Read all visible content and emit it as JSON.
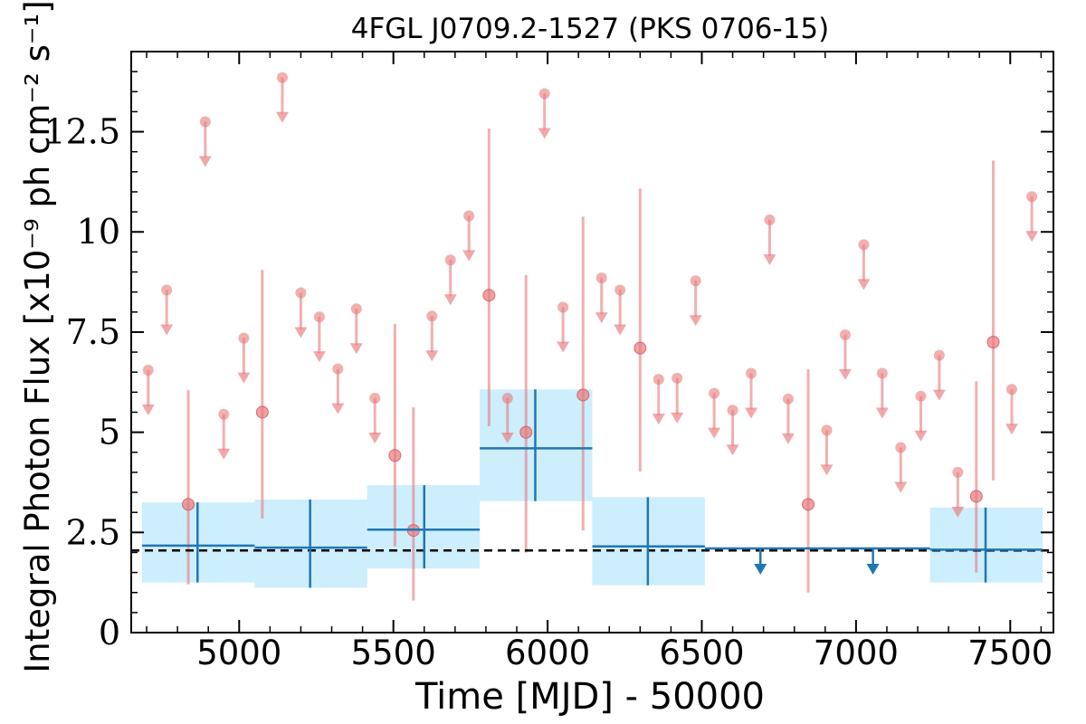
{
  "chart_data": {
    "type": "scatter",
    "title": "4FGL J0709.2-1527 (PKS 0706-15)",
    "xlabel": "Time [MJD] - 50000",
    "ylabel": "Integral Photon Flux [x10⁻⁹ ph cm⁻² s⁻¹]",
    "xlim": [
      4650,
      7640
    ],
    "ylim": [
      0,
      14.5
    ],
    "xticks": [
      5000,
      5500,
      6000,
      6500,
      7000,
      7500
    ],
    "xtick_labels": [
      "5000",
      "5500",
      "6000",
      "6500",
      "7000",
      "7500"
    ],
    "yticks": [
      0,
      2.5,
      5,
      7.5,
      10,
      12.5
    ],
    "ytick_labels": [
      "0",
      "2.5",
      "5",
      "7.5",
      "10",
      "12.5"
    ],
    "grid": false,
    "reference_line": {
      "y": 2.05,
      "style": "dashed"
    },
    "colors": {
      "short_bins": "#e8797c",
      "long_bins": "#1f77b4",
      "long_bin_band": "#cdeefc",
      "reference": "#000000"
    },
    "series": [
      {
        "detections": [
          {
            "x": 4835,
            "y": 3.2,
            "ylo": 1.2,
            "yhi": 6.05
          },
          {
            "x": 5075,
            "y": 5.5,
            "ylo": 2.85,
            "yhi": 9.05
          },
          {
            "x": 5505,
            "y": 4.42,
            "ylo": 2.15,
            "yhi": 7.7
          },
          {
            "x": 5565,
            "y": 2.55,
            "ylo": 0.8,
            "yhi": 5.62
          },
          {
            "x": 5810,
            "y": 8.42,
            "ylo": 5.15,
            "yhi": 12.58
          },
          {
            "x": 5930,
            "y": 5.0,
            "ylo": 2.0,
            "yhi": 8.92
          },
          {
            "x": 6115,
            "y": 5.93,
            "ylo": 2.55,
            "yhi": 10.38
          },
          {
            "x": 6300,
            "y": 7.1,
            "ylo": 4.02,
            "yhi": 11.08
          },
          {
            "x": 6845,
            "y": 3.2,
            "ylo": 1.0,
            "yhi": 6.57
          },
          {
            "x": 7390,
            "y": 3.4,
            "ylo": 1.5,
            "yhi": 6.27
          },
          {
            "x": 7445,
            "y": 7.25,
            "ylo": 3.8,
            "yhi": 11.78
          }
        ],
        "upper_limits": [
          {
            "x": 4705,
            "y": 6.55
          },
          {
            "x": 4765,
            "y": 8.55
          },
          {
            "x": 4890,
            "y": 12.75
          },
          {
            "x": 4950,
            "y": 5.45
          },
          {
            "x": 5015,
            "y": 7.35
          },
          {
            "x": 5140,
            "y": 13.85
          },
          {
            "x": 5200,
            "y": 8.48
          },
          {
            "x": 5260,
            "y": 7.88
          },
          {
            "x": 5320,
            "y": 6.58
          },
          {
            "x": 5380,
            "y": 8.08
          },
          {
            "x": 5440,
            "y": 5.85
          },
          {
            "x": 5625,
            "y": 7.9
          },
          {
            "x": 5685,
            "y": 9.3
          },
          {
            "x": 5745,
            "y": 10.4
          },
          {
            "x": 5870,
            "y": 5.85
          },
          {
            "x": 5990,
            "y": 13.45
          },
          {
            "x": 6050,
            "y": 8.12
          },
          {
            "x": 6175,
            "y": 8.85
          },
          {
            "x": 6235,
            "y": 8.55
          },
          {
            "x": 6360,
            "y": 6.32
          },
          {
            "x": 6420,
            "y": 6.35
          },
          {
            "x": 6480,
            "y": 8.78
          },
          {
            "x": 6540,
            "y": 5.97
          },
          {
            "x": 6600,
            "y": 5.55
          },
          {
            "x": 6660,
            "y": 6.47
          },
          {
            "x": 6720,
            "y": 10.3
          },
          {
            "x": 6780,
            "y": 5.83
          },
          {
            "x": 6905,
            "y": 5.05
          },
          {
            "x": 6965,
            "y": 7.43
          },
          {
            "x": 7025,
            "y": 9.68
          },
          {
            "x": 7085,
            "y": 6.47
          },
          {
            "x": 7145,
            "y": 4.62
          },
          {
            "x": 7210,
            "y": 5.9
          },
          {
            "x": 7270,
            "y": 6.92
          },
          {
            "x": 7330,
            "y": 4.0
          },
          {
            "x": 7505,
            "y": 6.07
          },
          {
            "x": 7570,
            "y": 10.88
          }
        ]
      },
      {
        "detections": [
          {
            "x0": 4685,
            "x1": 5050,
            "xc": 4865,
            "y": 2.17,
            "ylo": 1.25,
            "yhi": 3.25
          },
          {
            "x0": 5050,
            "x1": 5415,
            "xc": 5230,
            "y": 2.12,
            "ylo": 1.12,
            "yhi": 3.32
          },
          {
            "x0": 5415,
            "x1": 5780,
            "xc": 5600,
            "y": 2.57,
            "ylo": 1.6,
            "yhi": 3.68
          },
          {
            "x0": 5780,
            "x1": 6145,
            "xc": 5960,
            "y": 4.6,
            "ylo": 3.28,
            "yhi": 6.07
          },
          {
            "x0": 6145,
            "x1": 6510,
            "xc": 6325,
            "y": 2.15,
            "ylo": 1.18,
            "yhi": 3.38
          },
          {
            "x0": 7240,
            "x1": 7605,
            "xc": 7420,
            "y": 2.07,
            "ylo": 1.25,
            "yhi": 3.12
          }
        ],
        "upper_limits": [
          {
            "x0": 6510,
            "x1": 6875,
            "xc": 6690,
            "y": 2.1
          },
          {
            "x0": 6875,
            "x1": 7240,
            "xc": 7055,
            "y": 2.1
          }
        ]
      }
    ]
  }
}
